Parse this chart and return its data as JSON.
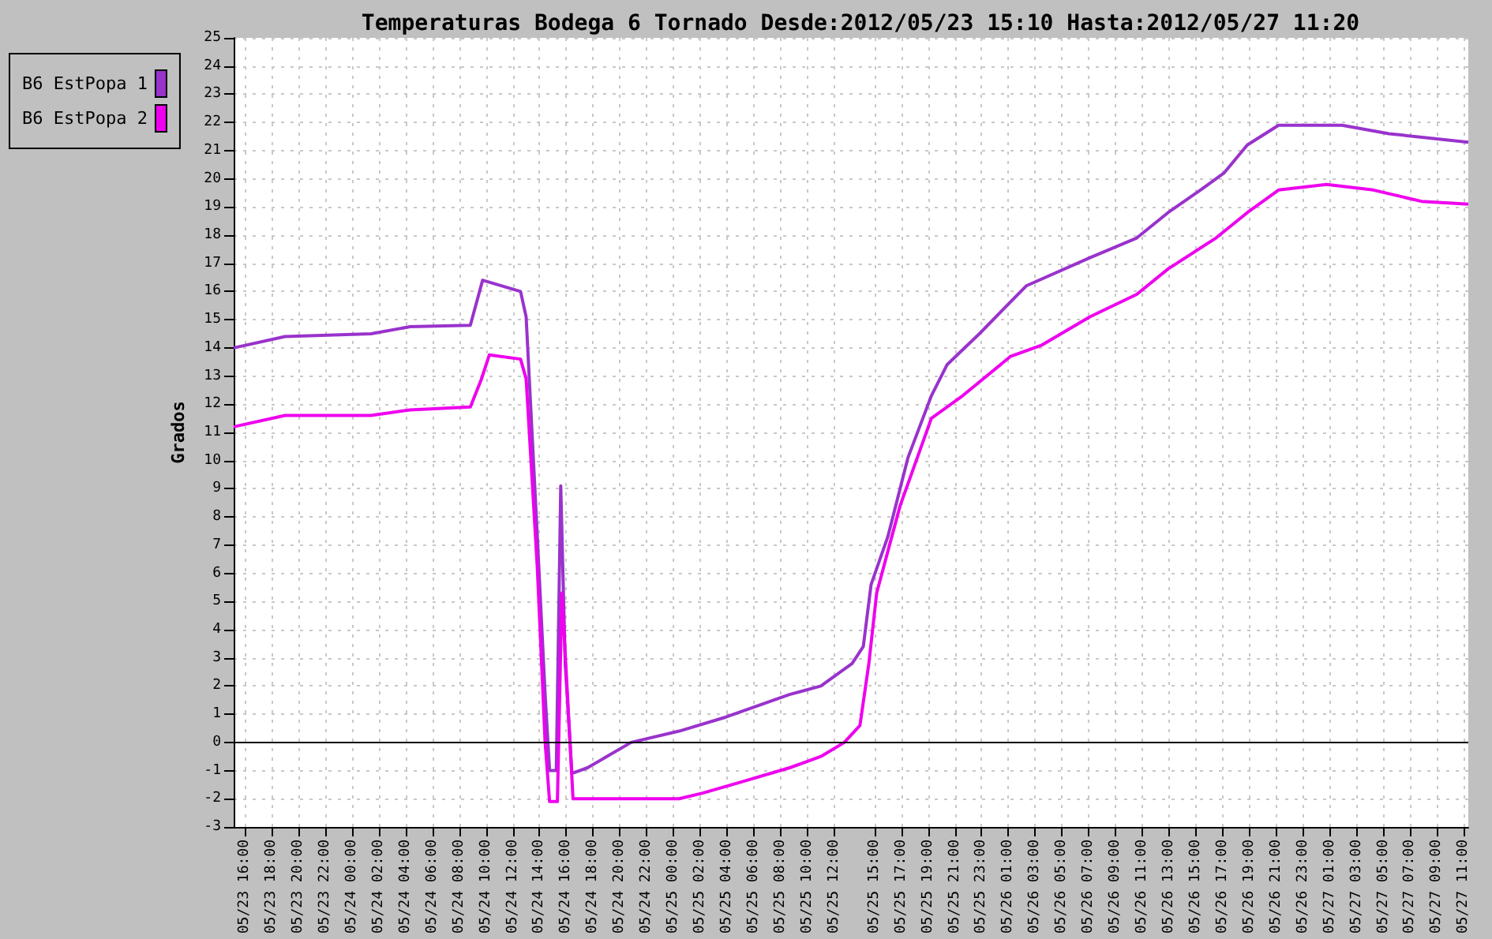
{
  "chart_data": {
    "type": "line",
    "title": "Temperaturas Bodega 6 Tornado Desde:2012/05/23 15:10 Hasta:2012/05/27 11:20",
    "ylabel": "Grados",
    "xlim": [
      "2012-05-23T15:10",
      "2012-05-27T11:20"
    ],
    "xticks": [
      {
        "value": "2012-05-23T16:00",
        "label": "05/23 16:00"
      },
      {
        "value": "2012-05-23T18:00",
        "label": "05/23 18:00"
      },
      {
        "value": "2012-05-23T20:00",
        "label": "05/23 20:00"
      },
      {
        "value": "2012-05-23T22:00",
        "label": "05/23 22:00"
      },
      {
        "value": "2012-05-24T00:00",
        "label": "05/24 00:00"
      },
      {
        "value": "2012-05-24T02:00",
        "label": "05/24 02:00"
      },
      {
        "value": "2012-05-24T04:00",
        "label": "05/24 04:00"
      },
      {
        "value": "2012-05-24T06:00",
        "label": "05/24 06:00"
      },
      {
        "value": "2012-05-24T08:00",
        "label": "05/24 08:00"
      },
      {
        "value": "2012-05-24T10:00",
        "label": "05/24 10:00"
      },
      {
        "value": "2012-05-24T12:00",
        "label": "05/24 12:00"
      },
      {
        "value": "2012-05-24T14:00",
        "label": "05/24 14:00"
      },
      {
        "value": "2012-05-24T16:00",
        "label": "05/24 16:00"
      },
      {
        "value": "2012-05-24T18:00",
        "label": "05/24 18:00"
      },
      {
        "value": "2012-05-24T20:00",
        "label": "05/24 20:00"
      },
      {
        "value": "2012-05-24T22:00",
        "label": "05/24 22:00"
      },
      {
        "value": "2012-05-25T00:00",
        "label": "05/25 00:00"
      },
      {
        "value": "2012-05-25T02:00",
        "label": "05/25 02:00"
      },
      {
        "value": "2012-05-25T04:00",
        "label": "05/25 04:00"
      },
      {
        "value": "2012-05-25T06:00",
        "label": "05/25 06:00"
      },
      {
        "value": "2012-05-25T08:00",
        "label": "05/25 08:00"
      },
      {
        "value": "2012-05-25T10:00",
        "label": "05/25 10:00"
      },
      {
        "value": "2012-05-25T12:00",
        "label": "05/25 12:00"
      },
      {
        "value": "2012-05-25T15:00",
        "label": "05/25 15:00"
      },
      {
        "value": "2012-05-25T17:00",
        "label": "05/25 17:00"
      },
      {
        "value": "2012-05-25T19:00",
        "label": "05/25 19:00"
      },
      {
        "value": "2012-05-25T21:00",
        "label": "05/25 21:00"
      },
      {
        "value": "2012-05-25T23:00",
        "label": "05/25 23:00"
      },
      {
        "value": "2012-05-26T01:00",
        "label": "05/26 01:00"
      },
      {
        "value": "2012-05-26T03:00",
        "label": "05/26 03:00"
      },
      {
        "value": "2012-05-26T05:00",
        "label": "05/26 05:00"
      },
      {
        "value": "2012-05-26T07:00",
        "label": "05/26 07:00"
      },
      {
        "value": "2012-05-26T09:00",
        "label": "05/26 09:00"
      },
      {
        "value": "2012-05-26T11:00",
        "label": "05/26 11:00"
      },
      {
        "value": "2012-05-26T13:00",
        "label": "05/26 13:00"
      },
      {
        "value": "2012-05-26T15:00",
        "label": "05/26 15:00"
      },
      {
        "value": "2012-05-26T17:00",
        "label": "05/26 17:00"
      },
      {
        "value": "2012-05-26T19:00",
        "label": "05/26 19:00"
      },
      {
        "value": "2012-05-26T21:00",
        "label": "05/26 21:00"
      },
      {
        "value": "2012-05-26T23:00",
        "label": "05/26 23:00"
      },
      {
        "value": "2012-05-27T01:00",
        "label": "05/27 01:00"
      },
      {
        "value": "2012-05-27T03:00",
        "label": "05/27 03:00"
      },
      {
        "value": "2012-05-27T05:00",
        "label": "05/27 05:00"
      },
      {
        "value": "2012-05-27T07:00",
        "label": "05/27 07:00"
      },
      {
        "value": "2012-05-27T09:00",
        "label": "05/27 09:00"
      },
      {
        "value": "2012-05-27T11:00",
        "label": "05/27 11:00"
      }
    ],
    "ylim": [
      -3,
      25
    ],
    "yticks": [
      -3,
      -2,
      -1,
      0,
      1,
      2,
      3,
      4,
      5,
      6,
      7,
      8,
      9,
      10,
      11,
      12,
      13,
      14,
      15,
      16,
      17,
      18,
      19,
      20,
      21,
      22,
      23,
      24,
      25
    ],
    "grid": true,
    "legend": "top left",
    "marker": "none",
    "line_style": "solid",
    "ref_lines": [
      {
        "axis": "y",
        "value": 0,
        "color": "#000000"
      }
    ],
    "series": [
      {
        "name": "B6 EstPopa 1",
        "color": "#9933cc",
        "x": [
          "2012-05-23T15:10",
          "2012-05-23T19:00",
          "2012-05-24T01:25",
          "2012-05-24T04:20",
          "2012-05-24T08:50",
          "2012-05-24T09:45",
          "2012-05-24T12:35",
          "2012-05-24T13:00",
          "2012-05-24T13:50",
          "2012-05-24T14:25",
          "2012-05-24T14:45",
          "2012-05-24T15:15",
          "2012-05-24T15:35",
          "2012-05-24T15:55",
          "2012-05-24T16:25",
          "2012-05-24T17:35",
          "2012-05-24T20:50",
          "2012-05-25T00:25",
          "2012-05-25T03:55",
          "2012-05-25T08:40",
          "2012-05-25T11:00",
          "2012-05-25T13:20",
          "2012-05-25T14:10",
          "2012-05-25T14:45",
          "2012-05-25T16:00",
          "2012-05-25T17:30",
          "2012-05-25T19:15",
          "2012-05-25T20:25",
          "2012-05-25T22:50",
          "2012-05-26T02:20",
          "2012-05-26T07:05",
          "2012-05-26T10:35",
          "2012-05-26T12:55",
          "2012-05-26T15:20",
          "2012-05-26T17:05",
          "2012-05-26T18:50",
          "2012-05-26T21:10",
          "2012-05-27T01:55",
          "2012-05-27T05:25",
          "2012-05-27T11:20"
        ],
        "values": [
          14.0,
          14.4,
          14.5,
          14.75,
          14.8,
          16.4,
          16.0,
          15.1,
          7.3,
          1.7,
          -1.0,
          -1.0,
          9.1,
          2.8,
          -1.1,
          -0.9,
          0.0,
          0.4,
          0.9,
          1.7,
          2.0,
          2.8,
          3.4,
          5.6,
          7.3,
          10.1,
          12.3,
          13.4,
          14.5,
          16.2,
          17.2,
          17.9,
          18.8,
          19.6,
          20.2,
          21.2,
          21.9,
          21.9,
          21.6,
          21.3
        ]
      },
      {
        "name": "B6 EstPopa 2",
        "color": "#ee00ee",
        "x": [
          "2012-05-23T15:10",
          "2012-05-23T19:00",
          "2012-05-24T01:25",
          "2012-05-24T04:20",
          "2012-05-24T08:50",
          "2012-05-24T09:40",
          "2012-05-24T10:15",
          "2012-05-24T12:35",
          "2012-05-24T13:00",
          "2012-05-24T13:50",
          "2012-05-24T14:25",
          "2012-05-24T14:45",
          "2012-05-24T15:20",
          "2012-05-24T15:40",
          "2012-05-24T16:05",
          "2012-05-24T16:30",
          "2012-05-25T00:25",
          "2012-05-25T02:10",
          "2012-05-25T05:05",
          "2012-05-25T08:40",
          "2012-05-25T11:00",
          "2012-05-25T12:45",
          "2012-05-25T13:55",
          "2012-05-25T14:35",
          "2012-05-25T15:10",
          "2012-05-25T16:55",
          "2012-05-25T19:15",
          "2012-05-25T21:35",
          "2012-05-26T01:10",
          "2012-05-26T03:30",
          "2012-05-26T07:05",
          "2012-05-26T10:35",
          "2012-05-26T12:55",
          "2012-05-26T16:30",
          "2012-05-26T18:50",
          "2012-05-26T21:10",
          "2012-05-27T00:45",
          "2012-05-27T04:15",
          "2012-05-27T07:50",
          "2012-05-27T11:20"
        ],
        "values": [
          11.2,
          11.6,
          11.6,
          11.8,
          11.9,
          12.9,
          13.75,
          13.6,
          12.9,
          6.2,
          0.0,
          -2.1,
          -2.1,
          5.3,
          1.7,
          -2.0,
          -2.0,
          -1.8,
          -1.4,
          -0.9,
          -0.5,
          0.0,
          0.6,
          2.8,
          5.3,
          8.4,
          11.5,
          12.3,
          13.7,
          14.1,
          15.1,
          15.9,
          16.8,
          17.9,
          18.8,
          19.6,
          19.8,
          19.6,
          19.2,
          19.1
        ]
      }
    ]
  }
}
